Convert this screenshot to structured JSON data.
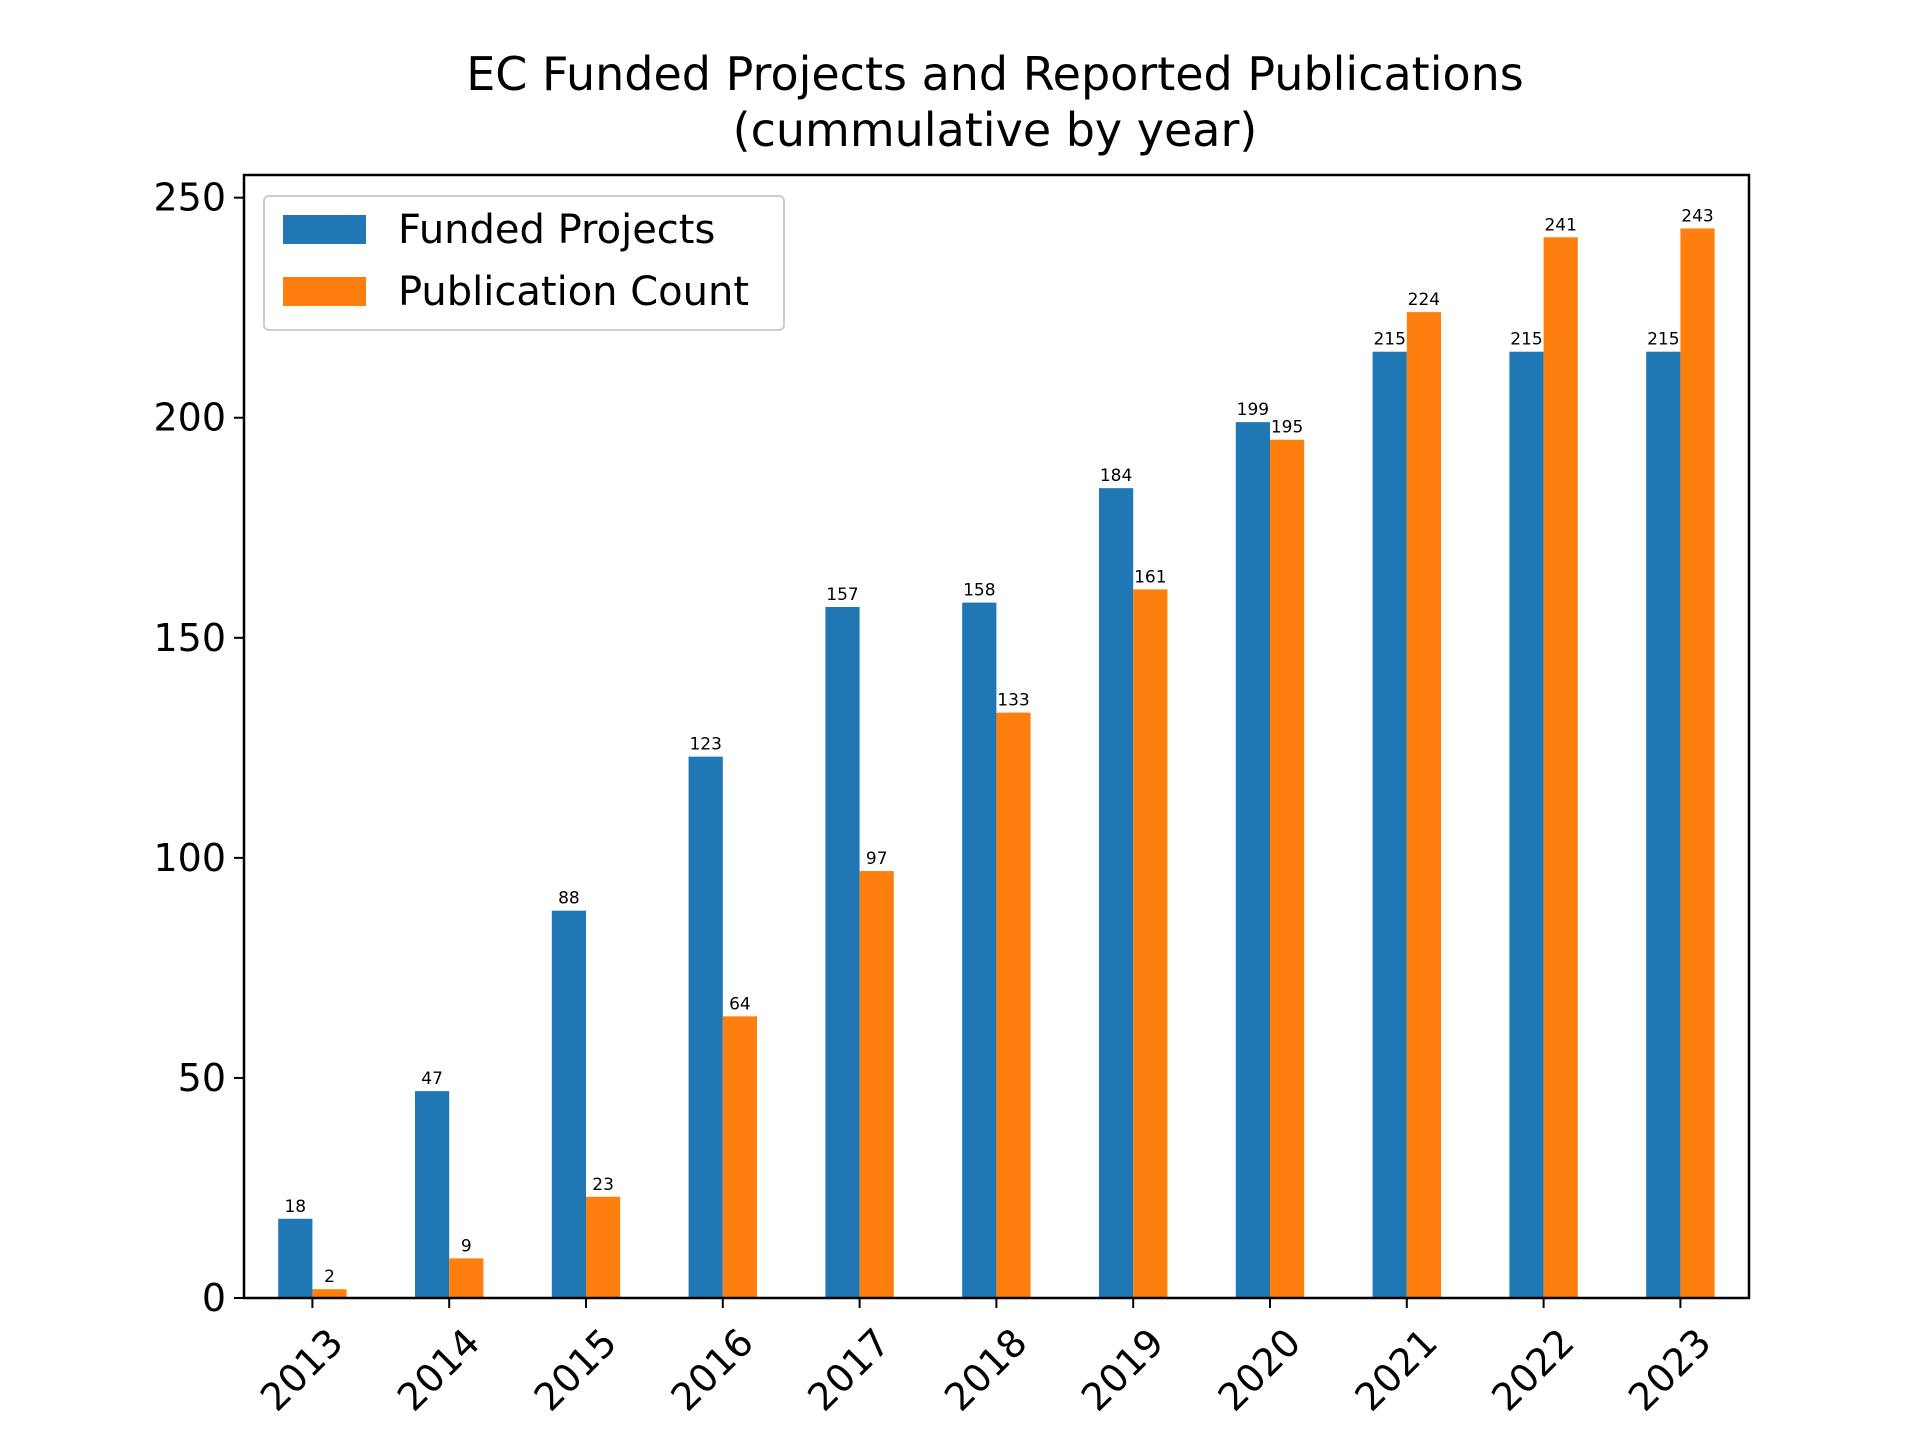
{
  "chart_data": {
    "type": "bar",
    "title": "EC Funded Projects and Reported Publications",
    "subtitle": "(cummulative by year)",
    "xlabel": "",
    "ylabel": "",
    "categories": [
      "2013",
      "2014",
      "2015",
      "2016",
      "2017",
      "2018",
      "2019",
      "2020",
      "2021",
      "2022",
      "2023"
    ],
    "series": [
      {
        "name": "Funded Projects",
        "color": "#1f77b4",
        "values": [
          18,
          47,
          88,
          123,
          157,
          158,
          184,
          199,
          215,
          215,
          215
        ]
      },
      {
        "name": "Publication Count",
        "color": "#ff7f0e",
        "values": [
          2,
          9,
          23,
          64,
          97,
          133,
          161,
          195,
          224,
          241,
          243
        ]
      }
    ],
    "ylim": [
      0,
      255.15
    ],
    "yticks": [
      0,
      50,
      100,
      150,
      200,
      250
    ],
    "legend": "top-left",
    "grid": false,
    "xtick_rotation": 45
  }
}
